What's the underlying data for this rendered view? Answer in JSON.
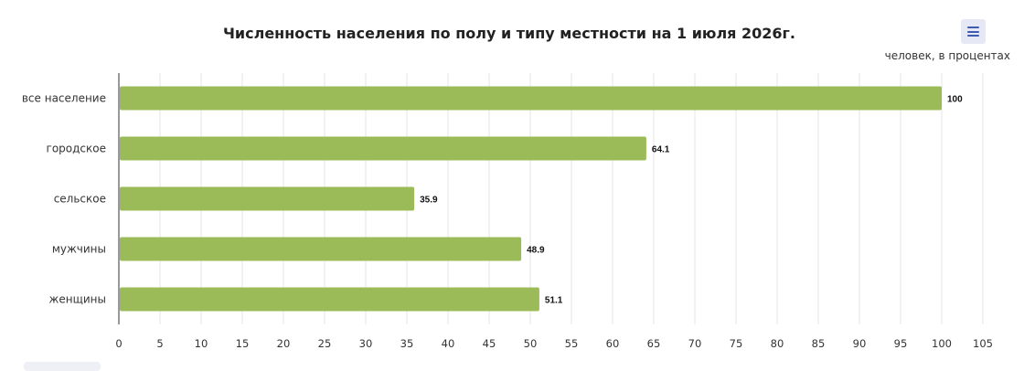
{
  "chart_data": {
    "type": "bar",
    "orientation": "horizontal",
    "title": "Численность населения по полу и типу местности на 1 июля 2026г.",
    "subtitle": "человек, в процентах",
    "categories": [
      "все население",
      "городское",
      "сельское",
      "мужчины",
      "женщины"
    ],
    "values": [
      100,
      64.1,
      35.9,
      48.9,
      51.1
    ],
    "data_labels": [
      "100",
      "64.1",
      "35.9",
      "48.9",
      "51.1"
    ],
    "xlim": [
      0,
      105
    ],
    "xticks": [
      0,
      5,
      10,
      15,
      20,
      25,
      30,
      35,
      40,
      45,
      50,
      55,
      60,
      65,
      70,
      75,
      80,
      85,
      90,
      95,
      100,
      105
    ],
    "grid": true,
    "bar_color": "#9bbb59"
  },
  "menu": {
    "icon": "hamburger-menu-icon"
  },
  "colors": {
    "menu_icon": "#3e5bb0",
    "menu_background": "#e6e9f5"
  }
}
